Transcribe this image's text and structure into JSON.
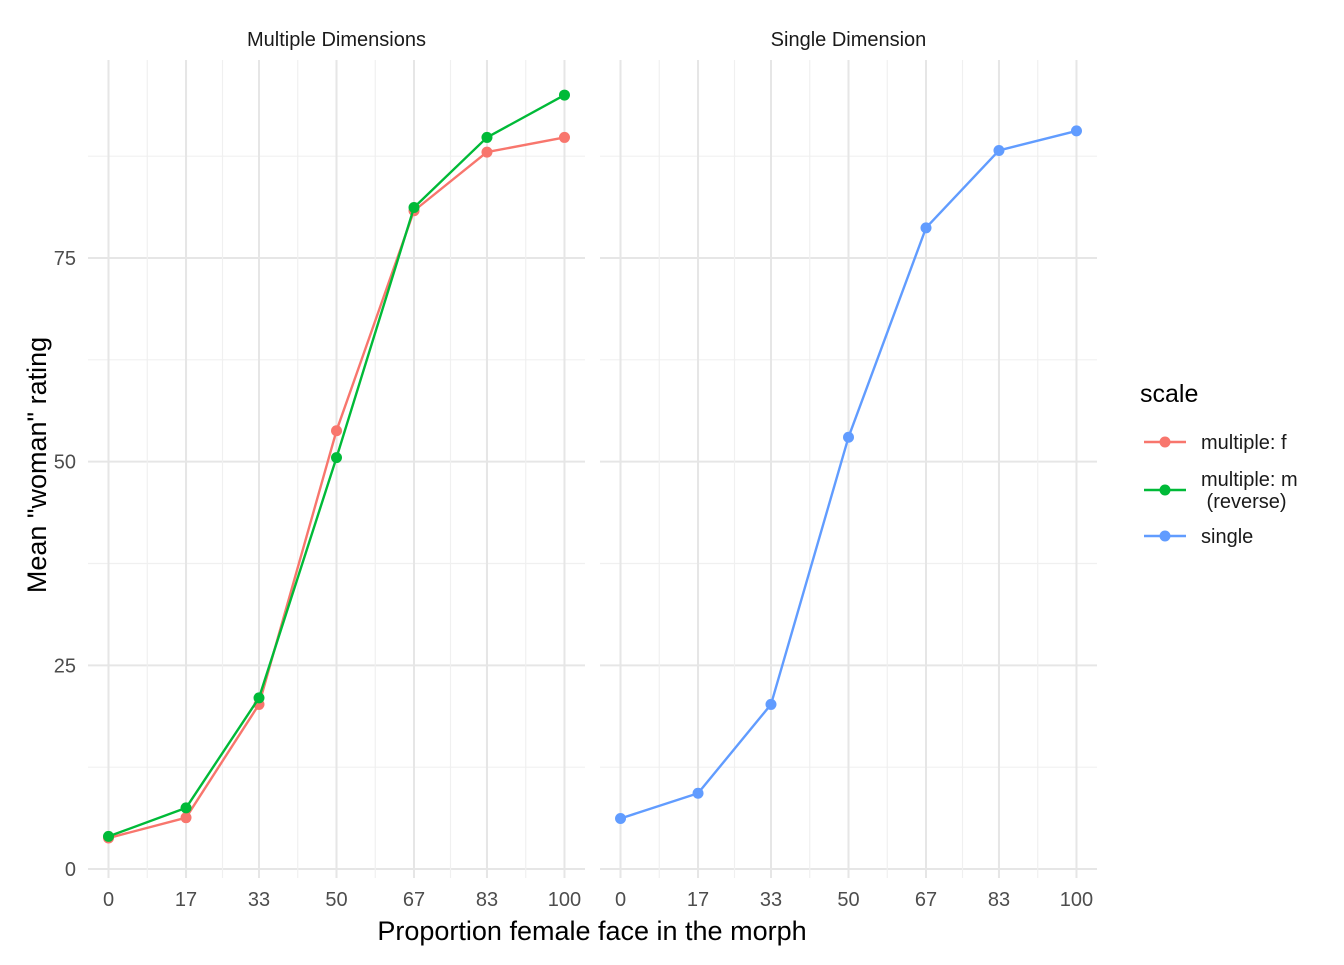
{
  "chart_data": {
    "type": "line",
    "facet_by": "dimension",
    "facets": [
      "Multiple Dimensions",
      "Single Dimension"
    ],
    "x": [
      0,
      17,
      33,
      50,
      67,
      83,
      100
    ],
    "x_tick_labels": [
      "0",
      "17",
      "33",
      "50",
      "67",
      "83",
      "100"
    ],
    "xlabel": "Proportion female face in the morph",
    "ylabel": "Mean \"woman\" rating",
    "y_ticks": [
      0,
      25,
      50,
      75
    ],
    "ylim": [
      0,
      96
    ],
    "grid": true,
    "legend": {
      "title": "scale",
      "placement": "right",
      "entries": [
        "multiple: f",
        "multiple: m\n (reverse)",
        "single"
      ]
    },
    "series": [
      {
        "name": "multiple: f",
        "facet": "Multiple Dimensions",
        "color": "#F8766D",
        "values": [
          3.8,
          6.3,
          20.2,
          53.8,
          80.8,
          88.0,
          89.8
        ]
      },
      {
        "name": "multiple: m\n (reverse)",
        "facet": "Multiple Dimensions",
        "color": "#00BA38",
        "values": [
          4.0,
          7.5,
          21.0,
          50.5,
          81.2,
          89.8,
          95.0
        ]
      },
      {
        "name": "single",
        "facet": "Single Dimension",
        "color": "#619CFF",
        "values": [
          6.2,
          9.3,
          20.2,
          53.0,
          78.7,
          88.2,
          90.6
        ]
      }
    ]
  }
}
